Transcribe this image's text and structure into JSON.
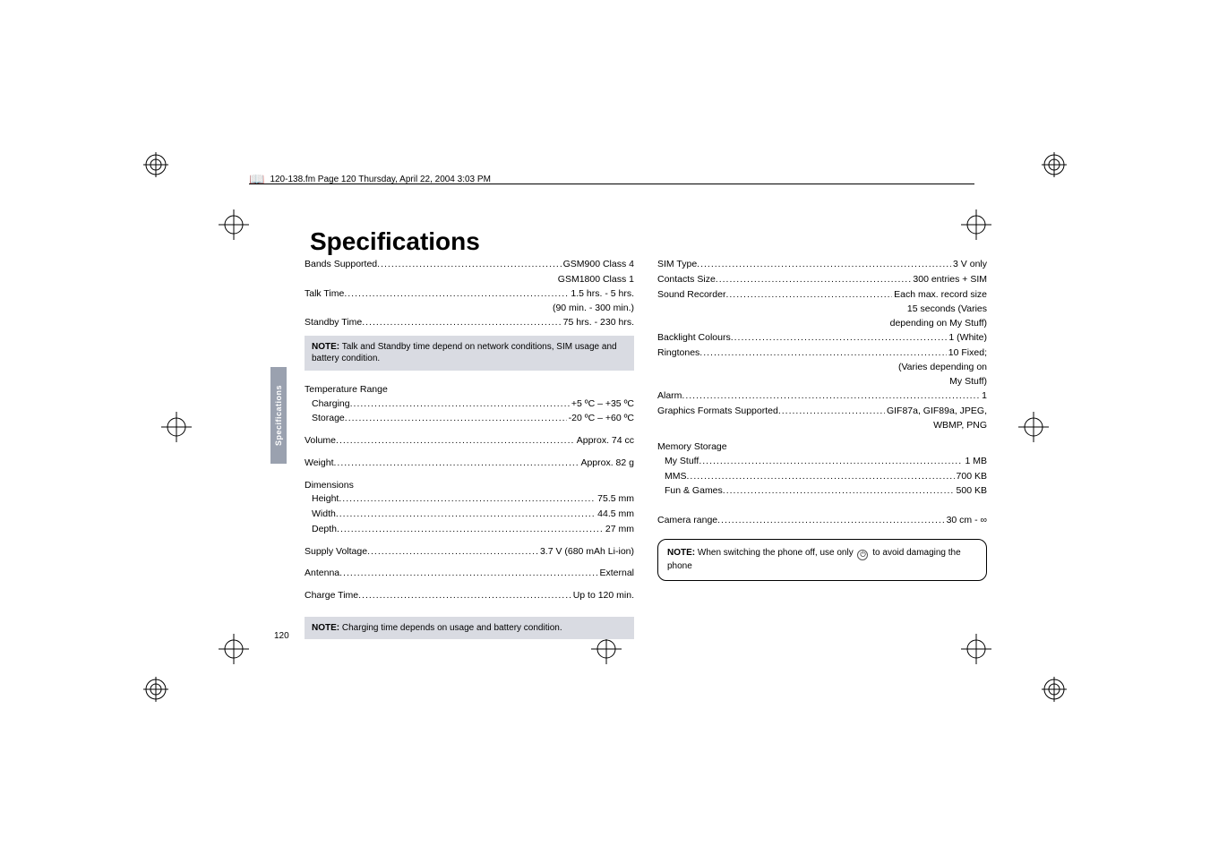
{
  "header": {
    "text": "120-138.fm  Page 120  Thursday, April 22, 2004  3:03 PM"
  },
  "title": "Specifications",
  "sideTab": "Specifications",
  "pageNumber": "120",
  "col1": {
    "rows1": [
      {
        "label": "Bands Supported",
        "value": "GSM900 Class 4"
      },
      {
        "cont": "GSM1800 Class 1"
      },
      {
        "label": "Talk Time",
        "value": "1.5 hrs. - 5 hrs."
      },
      {
        "cont": "(90 min. - 300 min.)"
      },
      {
        "label": "Standby Time",
        "value": "75 hrs. - 230 hrs."
      }
    ],
    "note1": {
      "bold": "NOTE:",
      "text": " Talk and Standby time depend on network conditions, SIM usage and battery condition."
    },
    "tempHeader": "Temperature Range",
    "tempRows": [
      {
        "label": "Charging",
        "value": "+5 ºC – +35 ºC",
        "indent": true
      },
      {
        "label": "Storage",
        "value": "-20 ºC – +60 ºC",
        "indent": true
      }
    ],
    "rows2": [
      {
        "label": "Volume",
        "value": "Approx. 74 cc"
      },
      {
        "label": "Weight",
        "value": "Approx. 82 g"
      }
    ],
    "dimHeader": "Dimensions",
    "dimRows": [
      {
        "label": "Height",
        "value": "75.5 mm",
        "indent": true
      },
      {
        "label": "Width",
        "value": "44.5 mm",
        "indent": true
      },
      {
        "label": "Depth",
        "value": "27 mm",
        "indent": true
      }
    ],
    "rows3": [
      {
        "label": "Supply Voltage",
        "value": "3.7 V (680 mAh Li-ion)"
      },
      {
        "label": "Antenna",
        "value": "External"
      },
      {
        "label": "Charge Time",
        "value": "Up to 120 min."
      }
    ],
    "note2": {
      "bold": "NOTE:",
      "text": " Charging time depends on usage and battery condition."
    }
  },
  "col2": {
    "rows1": [
      {
        "label": "SIM Type",
        "value": "3 V only"
      },
      {
        "label": "Contacts Size",
        "value": "300 entries + SIM"
      },
      {
        "label": "Sound Recorder",
        "value": "Each max. record size"
      },
      {
        "cont": "15 seconds (Varies"
      },
      {
        "cont": "depending on My Stuff)"
      },
      {
        "label": "Backlight Colours",
        "value": "1 (White)"
      },
      {
        "label": "Ringtones",
        "value": "10 Fixed;"
      },
      {
        "cont": "(Varies depending on"
      },
      {
        "cont": "My Stuff)"
      },
      {
        "label": "Alarm",
        "value": "1"
      },
      {
        "label": "Graphics Formats Supported",
        "value": "GIF87a, GIF89a, JPEG,"
      },
      {
        "cont": "WBMP, PNG"
      }
    ],
    "memHeader": "Memory Storage",
    "memRows": [
      {
        "label": "My Stuff",
        "value": "1 MB",
        "indent": true
      },
      {
        "label": "MMS",
        "value": "700 KB",
        "indent": true
      },
      {
        "label": "Fun & Games",
        "value": "500 KB",
        "indent": true
      }
    ],
    "rows2": [
      {
        "label": "Camera range",
        "value": "30 cm - ∞"
      }
    ],
    "note": {
      "bold": "NOTE:",
      "text1": " When switching the phone off, use only ",
      "text2": " to avoid damaging the phone"
    }
  }
}
